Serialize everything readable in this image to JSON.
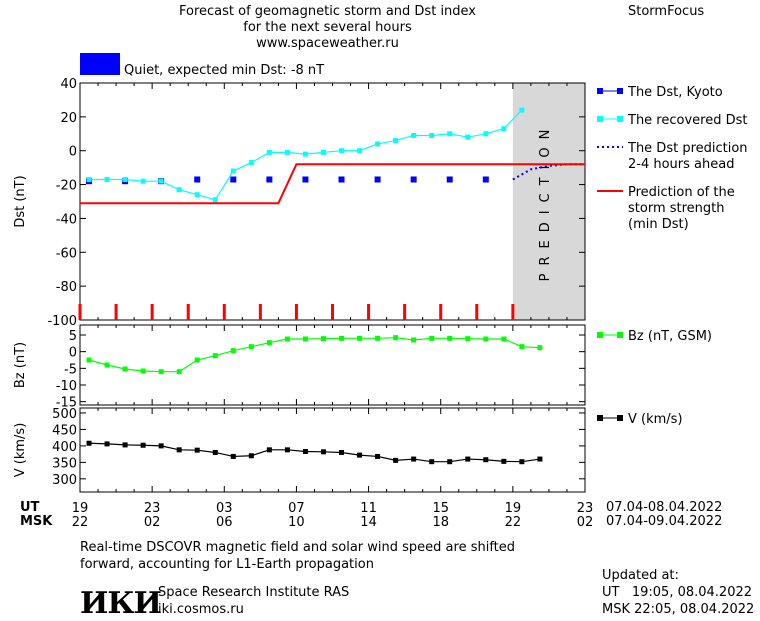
{
  "header": {
    "title_line1": "Forecast of geomagnetic storm and Dst index",
    "title_line2": "for the next several hours",
    "title_line3": "www.spaceweather.ru",
    "brand": "StormFocus",
    "status_text": "Quiet, expected min Dst: -8 nT",
    "status_color": "#0000ff"
  },
  "footer": {
    "note_line1": "Real-time DSCOVR magnetic field and solar wind speed are shifted",
    "note_line2": "forward, accounting for L1-Earth propagation",
    "logo_text": "ИКИ",
    "institute": "Space Research Institute RAS",
    "website": "iki.cosmos.ru",
    "updated_label": "Updated at:",
    "updated_ut": "UT   19:05, 08.04.2022",
    "updated_msk": "MSK 22:05, 08.04.2022"
  },
  "chart_data": [
    {
      "type": "line",
      "ylabel": "Dst (nT)",
      "ylim": [
        -100,
        40
      ],
      "yticks": [
        40,
        20,
        0,
        -20,
        -40,
        -60,
        -80,
        -100
      ],
      "x_unit": "hours from 19 UT 07.04.2022",
      "xlim": [
        0,
        28
      ],
      "shaded_region_label": "PREDICTION",
      "shaded_region_x": [
        24,
        28
      ],
      "storm_markers_x": [
        0,
        2,
        4,
        6,
        8,
        10,
        12,
        14,
        16,
        18,
        20,
        22,
        24
      ],
      "series": [
        {
          "name": "The Dst, Kyoto",
          "color": "#0000ff",
          "style": "squares",
          "x": [
            0.5,
            2.5,
            4.5,
            6.5,
            8.5,
            10.5,
            12.5,
            14.5,
            16.5,
            18.5,
            20.5,
            22.5
          ],
          "values": [
            -18,
            -18,
            -18,
            -17,
            -17,
            -17,
            -17,
            -17,
            -17,
            -17,
            -17,
            -17
          ]
        },
        {
          "name": "The recovered Dst",
          "color": "#00ffff",
          "style": "line-dots",
          "x": [
            0.5,
            1.5,
            2.5,
            3.5,
            4.5,
            5.5,
            6.5,
            7.5,
            8.5,
            9.5,
            10.5,
            11.5,
            12.5,
            13.5,
            14.5,
            15.5,
            16.5,
            17.5,
            18.5,
            19.5,
            20.5,
            21.5,
            22.5,
            23.5,
            24.5
          ],
          "values": [
            -17,
            -17,
            -17,
            -18,
            -18,
            -23,
            -26,
            -29,
            -12,
            -7,
            -1,
            -1,
            -2,
            -1,
            0,
            0,
            4,
            6,
            9,
            9,
            10,
            8,
            10,
            13,
            24
          ]
        },
        {
          "name": "The Dst prediction 2-4 hours ahead",
          "color": "#0000ff",
          "style": "dotted",
          "x": [
            24,
            25,
            26,
            27,
            28
          ],
          "values": [
            -17,
            -11,
            -9,
            -8,
            -8
          ]
        },
        {
          "name": "Prediction of the storm strength (min Dst)",
          "color": "#ff0000",
          "style": "step",
          "x": [
            0,
            11,
            12,
            28
          ],
          "values": [
            -31,
            -31,
            -8,
            -8
          ]
        }
      ],
      "legend": [
        {
          "text": "The Dst, Kyoto",
          "color": "#0000ff",
          "marker": "square"
        },
        {
          "text": "The recovered Dst",
          "color": "#00ffff",
          "marker": "square"
        },
        {
          "text": "The Dst prediction\n2-4 hours ahead",
          "color": "#0000ff",
          "marker": "dotted"
        },
        {
          "text": "Prediction of the\nstorm strength\n(min Dst)",
          "color": "#ff0000",
          "marker": "line"
        }
      ]
    },
    {
      "type": "line",
      "ylabel": "Bz (nT)",
      "ylim": [
        -16,
        8
      ],
      "yticks": [
        5,
        0,
        -5,
        -10,
        -15
      ],
      "series": [
        {
          "name": "Bz (nT, GSM)",
          "color": "#00ff00",
          "x": [
            0.5,
            1.5,
            2.5,
            3.5,
            4.5,
            5.5,
            6.5,
            7.5,
            8.5,
            9.5,
            10.5,
            11.5,
            12.5,
            13.5,
            14.5,
            15.5,
            16.5,
            17.5,
            18.5,
            19.5,
            20.5,
            21.5,
            22.5,
            23.5,
            24.5,
            25.5
          ],
          "values": [
            -2.5,
            -4,
            -5.2,
            -5.8,
            -6,
            -6,
            -2.5,
            -1.2,
            0.3,
            1.5,
            2.7,
            3.8,
            3.8,
            3.9,
            4.0,
            4.0,
            4.0,
            4.2,
            3.5,
            4.0,
            4.0,
            3.9,
            3.8,
            3.8,
            1.5,
            1.2
          ]
        }
      ],
      "legend": [
        {
          "text": "Bz (nT, GSM)",
          "color": "#00ff00",
          "marker": "square"
        }
      ]
    },
    {
      "type": "line",
      "ylabel": "V (km/s)",
      "ylim": [
        260,
        515
      ],
      "yticks": [
        500,
        450,
        400,
        350,
        300
      ],
      "series": [
        {
          "name": "V (km/s)",
          "color": "#000000",
          "x": [
            0.5,
            1.5,
            2.5,
            3.5,
            4.5,
            5.5,
            6.5,
            7.5,
            8.5,
            9.5,
            10.5,
            11.5,
            12.5,
            13.5,
            14.5,
            15.5,
            16.5,
            17.5,
            18.5,
            19.5,
            20.5,
            21.5,
            22.5,
            23.5,
            24.5,
            25.5
          ],
          "values": [
            408,
            406,
            403,
            402,
            400,
            388,
            387,
            380,
            368,
            370,
            388,
            388,
            383,
            382,
            380,
            372,
            368,
            356,
            360,
            352,
            352,
            360,
            358,
            353,
            352,
            360
          ]
        }
      ],
      "legend": [
        {
          "text": "V (km/s)",
          "color": "#000000",
          "marker": "square"
        }
      ]
    }
  ],
  "time_axis": {
    "ut_label": "UT",
    "msk_label": "MSK",
    "ut_ticks": [
      "19",
      "23",
      "03",
      "07",
      "11",
      "15",
      "19",
      "23"
    ],
    "msk_ticks": [
      "22",
      "02",
      "06",
      "10",
      "14",
      "18",
      "22",
      "02"
    ],
    "ut_range": "07.04-08.04.2022",
    "msk_range": "07.04-09.04.2022"
  }
}
